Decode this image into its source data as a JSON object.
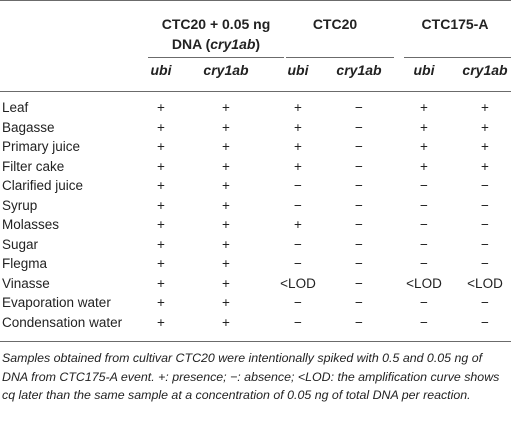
{
  "columns": {
    "groups": [
      {
        "title_line1": "CTC20 + 0.05 ng",
        "title_line2_prefix": "DNA (",
        "title_line2_italic": "cry1ab",
        "title_line2_suffix": ")"
      },
      {
        "title_line1": "CTC20"
      },
      {
        "title_line1": "CTC175-A"
      }
    ],
    "sub": [
      "ubi",
      "cry1ab",
      "ubi",
      "cry1ab",
      "ubi",
      "cry1ab"
    ]
  },
  "rows": [
    {
      "label": "Leaf",
      "values": [
        "+",
        "+",
        "+",
        "−",
        "+",
        "+"
      ]
    },
    {
      "label": "Bagasse",
      "values": [
        "+",
        "+",
        "+",
        "−",
        "+",
        "+"
      ]
    },
    {
      "label": "Primary juice",
      "values": [
        "+",
        "+",
        "+",
        "−",
        "+",
        "+"
      ]
    },
    {
      "label": "Filter cake",
      "values": [
        "+",
        "+",
        "+",
        "−",
        "+",
        "+"
      ]
    },
    {
      "label": "Clarified juice",
      "values": [
        "+",
        "+",
        "−",
        "−",
        "−",
        "−"
      ]
    },
    {
      "label": "Syrup",
      "values": [
        "+",
        "+",
        "−",
        "−",
        "−",
        "−"
      ]
    },
    {
      "label": "Molasses",
      "values": [
        "+",
        "+",
        "+",
        "−",
        "−",
        "−"
      ]
    },
    {
      "label": "Sugar",
      "values": [
        "+",
        "+",
        "−",
        "−",
        "−",
        "−"
      ]
    },
    {
      "label": "Flegma",
      "values": [
        "+",
        "+",
        "−",
        "−",
        "−",
        "−"
      ]
    },
    {
      "label": "Vinasse",
      "values": [
        "+",
        "+",
        "<LOD",
        "−",
        "<LOD",
        "<LOD"
      ]
    },
    {
      "label": "Evaporation water",
      "values": [
        "+",
        "+",
        "−",
        "−",
        "−",
        "−"
      ]
    },
    {
      "label": "Condensation water",
      "values": [
        "+",
        "+",
        "−",
        "−",
        "−",
        "−"
      ]
    }
  ],
  "footnote": "Samples obtained from cultivar CTC20 were intentionally spiked with 0.5 and 0.05 ng of DNA from CTC175-A event. +: presence; −: absence; <LOD: the amplification curve shows cq later than the same sample at a concentration of 0.05 ng of total DNA per reaction."
}
